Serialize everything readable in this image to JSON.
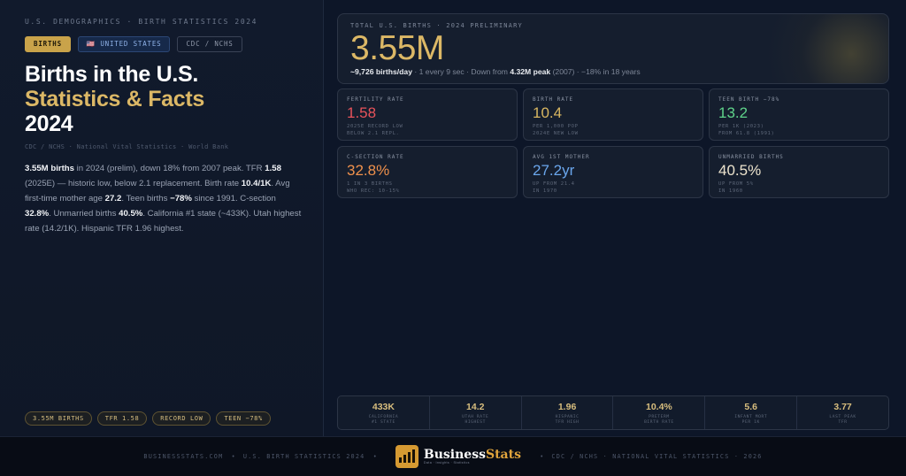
{
  "left": {
    "kicker": "U.S. DEMOGRAPHICS · BIRTH STATISTICS 2024",
    "tags": {
      "births": "BIRTHS",
      "country": "🇺🇸 UNITED STATES",
      "source": "CDC / NCHS"
    },
    "title": {
      "line1": "Births in the U.S.",
      "line2": "Statistics & Facts",
      "line3": "2024"
    },
    "source_line": "CDC / NCHS · National Vital Statistics · World Bank",
    "summary": {
      "s1": "3.55M births",
      "s2": " in 2024 (prelim), down 18% from 2007 peak. TFR ",
      "s3": "1.58",
      "s4": " (2025E) — historic low, below 2.1 replacement. Birth rate ",
      "s5": "10.4/1K",
      "s6": ". Avg first-time mother age ",
      "s7": "27.2",
      "s8": ". Teen births ",
      "s9": "−78%",
      "s10": " since 1991. C-section ",
      "s11": "32.8%",
      "s12": ". Unmarried births ",
      "s13": "40.5%",
      "s14": ". California #1 state (~433K). Utah highest rate (14.2/1K). Hispanic TFR 1.96 highest."
    },
    "chips": [
      "3.55M BIRTHS",
      "TFR 1.58",
      "RECORD LOW",
      "TEEN −78%"
    ]
  },
  "hero": {
    "label": "TOTAL U.S. BIRTHS · 2024 PRELIMINARY",
    "value": "3.55M",
    "per_day": "~9,726 births/day",
    "rest1": " · 1 every 9 sec · Down from ",
    "peak": "4.32M peak",
    "rest2": " (2007) · −18% in 18 years"
  },
  "stats": [
    {
      "label": "FERTILITY RATE",
      "value": "1.58",
      "color": "#e8535b",
      "note1": "2025E RECORD LOW",
      "note2": "BELOW 2.1 REPL."
    },
    {
      "label": "BIRTH RATE",
      "value": "10.4",
      "color": "#d9b761",
      "note1": "PER 1,000 POP",
      "note2": "2024E NEW LOW"
    },
    {
      "label": "TEEN BIRTH −78%",
      "value": "13.2",
      "color": "#5fd38a",
      "note1": "PER 1K (2023)",
      "note2": "FROM 61.8 (1991)"
    },
    {
      "label": "C-SECTION RATE",
      "value": "32.8%",
      "color": "#f0914c",
      "note1": "1 IN 3 BIRTHS",
      "note2": "WHO REC: 10-15%"
    },
    {
      "label": "AVG 1ST MOTHER",
      "value": "27.2yr",
      "color": "#6aa6ec",
      "note1": "UP FROM 21.4",
      "note2": "IN 1970"
    },
    {
      "label": "UNMARRIED BIRTHS",
      "value": "40.5%",
      "color": "#ece3cd",
      "note1": "UP FROM 5%",
      "note2": "IN 1960"
    }
  ],
  "strip": [
    {
      "value": "433K",
      "label1": "CALIFORNIA",
      "label2": "#1 STATE"
    },
    {
      "value": "14.2",
      "label1": "UTAH RATE",
      "label2": "HIGHEST"
    },
    {
      "value": "1.96",
      "label1": "HISPANIC",
      "label2": "TFR HIGH"
    },
    {
      "value": "10.4%",
      "label1": "PRETERM",
      "label2": "BIRTH RATE"
    },
    {
      "value": "5.6",
      "label1": "INFANT MORT",
      "label2": "PER 1K"
    },
    {
      "value": "3.77",
      "label1": "LAST PEAK",
      "label2": "TFR"
    }
  ],
  "footer": {
    "site": "BUSINESSSTATS.COM",
    "page": "U.S. BIRTH STATISTICS 2024",
    "brand_main": "Business",
    "brand_accent": "Stats",
    "brand_tagline": "Data · Insights · Statistics",
    "credit": "CDC / NCHS · NATIONAL VITAL STATISTICS · 2026"
  },
  "icons": {
    "brand": "bar-chart-icon",
    "flag": "us-flag-icon"
  }
}
